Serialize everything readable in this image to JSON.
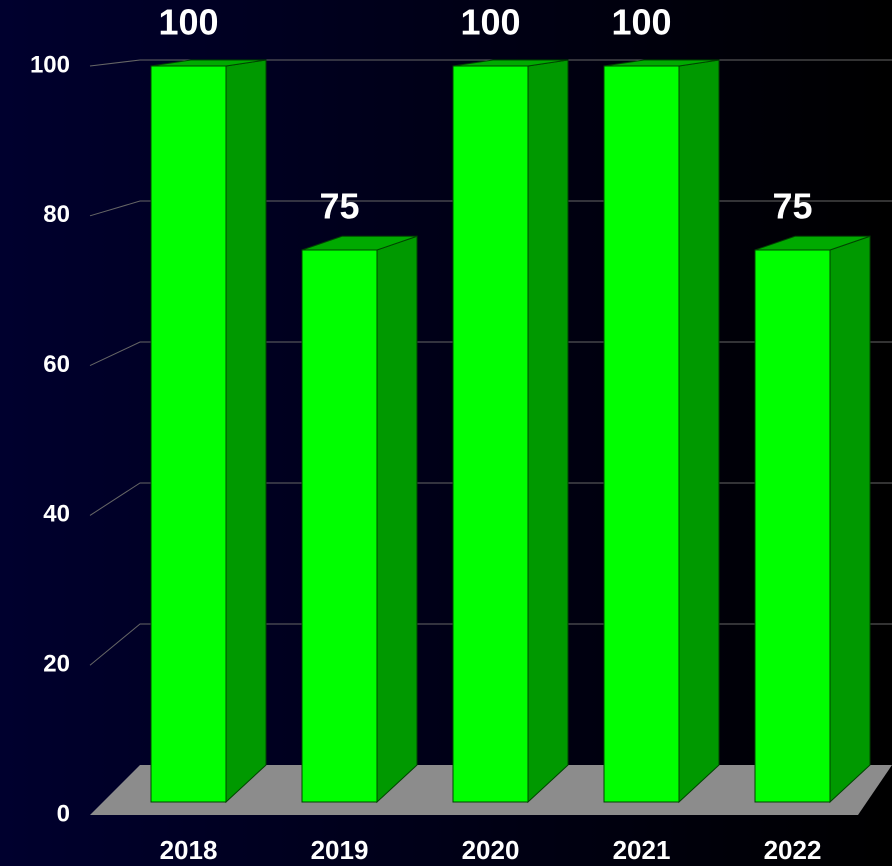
{
  "chart_data": {
    "type": "bar",
    "categories": [
      "2018",
      "2019",
      "2020",
      "2021",
      "2022"
    ],
    "values": [
      100,
      75,
      100,
      100,
      75
    ],
    "color": "#00ff00",
    "ylim": [
      0,
      100
    ],
    "yticks": [
      0,
      20,
      40,
      60,
      80,
      100
    ],
    "grid": true
  }
}
